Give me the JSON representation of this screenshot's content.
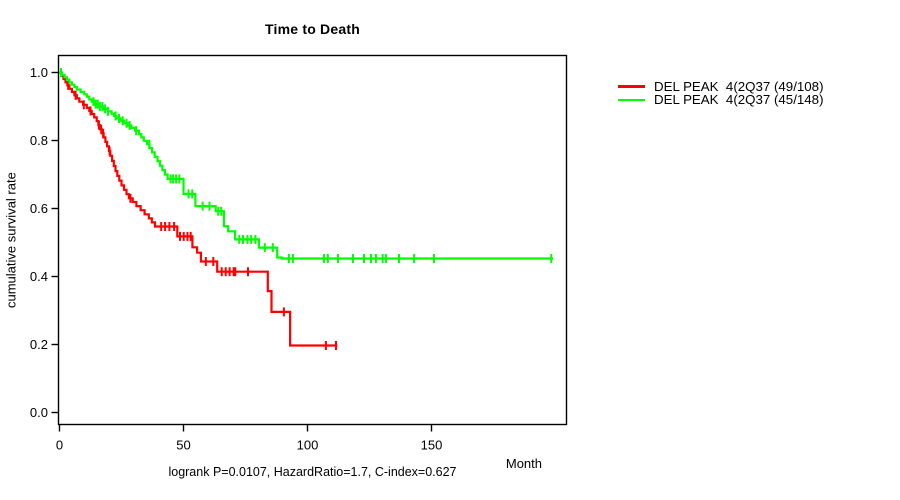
{
  "chart_data": {
    "type": "line",
    "subtype": "kaplan-meier-step-curves",
    "title": "Time to Death",
    "xlabel": "Month",
    "ylabel": "cumulative survival rate",
    "annotation": "logrank P=0.0107, HazardRatio=1.7, C-index=0.627",
    "xlim": [
      0,
      204
    ],
    "ylim": [
      0.0,
      1.0
    ],
    "xticks": [
      0,
      50,
      100,
      150
    ],
    "yticks": [
      0.0,
      0.2,
      0.4,
      0.6,
      0.8,
      1.0
    ],
    "grid": false,
    "legend_position": "right-outside-top",
    "censor_mark": "vertical-tick",
    "series": [
      {
        "name": "DEL PEAK  4(2Q37 (49/108)",
        "color": "#ff0000",
        "steps": [
          [
            0,
            1.0
          ],
          [
            0.8,
            0.99
          ],
          [
            1.6,
            0.981
          ],
          [
            2.4,
            0.971
          ],
          [
            3.2,
            0.962
          ],
          [
            4,
            0.952
          ],
          [
            5,
            0.943
          ],
          [
            6,
            0.933
          ],
          [
            7,
            0.924
          ],
          [
            8,
            0.914
          ],
          [
            9.5,
            0.905
          ],
          [
            11,
            0.896
          ],
          [
            12,
            0.887
          ],
          [
            13,
            0.878
          ],
          [
            14,
            0.868
          ],
          [
            15,
            0.857
          ],
          [
            15.7,
            0.845
          ],
          [
            16.4,
            0.833
          ],
          [
            17.1,
            0.821
          ],
          [
            17.8,
            0.809
          ],
          [
            18.5,
            0.796
          ],
          [
            19.2,
            0.783
          ],
          [
            19.9,
            0.769
          ],
          [
            20.5,
            0.755
          ],
          [
            21.2,
            0.74
          ],
          [
            21.9,
            0.725
          ],
          [
            22.6,
            0.71
          ],
          [
            23.3,
            0.696
          ],
          [
            24.1,
            0.682
          ],
          [
            25,
            0.668
          ],
          [
            26,
            0.655
          ],
          [
            27,
            0.642
          ],
          [
            28,
            0.63
          ],
          [
            29.5,
            0.619
          ],
          [
            31,
            0.607
          ],
          [
            32.7,
            0.595
          ],
          [
            34.3,
            0.583
          ],
          [
            36,
            0.571
          ],
          [
            37.2,
            0.559
          ],
          [
            38.5,
            0.547
          ],
          [
            47.5,
            0.518
          ],
          [
            53.6,
            0.486
          ],
          [
            55.5,
            0.47
          ],
          [
            57,
            0.444
          ],
          [
            63.6,
            0.414
          ],
          [
            84,
            0.357
          ],
          [
            85.5,
            0.296
          ],
          [
            93,
            0.197
          ]
        ],
        "end_month": 112,
        "censor_months": [
          3.5,
          6.5,
          9.8,
          12.5,
          15.9,
          16.8,
          17.6,
          20.2,
          28.6,
          41,
          42.6,
          44.3,
          46.2,
          48.6,
          50.1,
          51.6,
          52.9,
          59,
          62,
          65.4,
          67,
          68.6,
          70.2,
          70.9,
          76,
          90.5,
          107.4,
          111.5
        ]
      },
      {
        "name": "DEL PEAK  4(2Q37 (45/148)",
        "color": "#00ff00",
        "steps": [
          [
            0,
            1.0
          ],
          [
            1,
            0.993
          ],
          [
            2,
            0.986
          ],
          [
            3,
            0.979
          ],
          [
            4,
            0.971
          ],
          [
            5,
            0.964
          ],
          [
            6,
            0.957
          ],
          [
            7,
            0.95
          ],
          [
            8.5,
            0.943
          ],
          [
            10,
            0.936
          ],
          [
            11,
            0.929
          ],
          [
            12,
            0.921
          ],
          [
            13,
            0.914
          ],
          [
            14,
            0.907
          ],
          [
            15.5,
            0.9
          ],
          [
            17.5,
            0.893
          ],
          [
            19.5,
            0.886
          ],
          [
            21,
            0.879
          ],
          [
            22,
            0.872
          ],
          [
            23,
            0.865
          ],
          [
            24.5,
            0.858
          ],
          [
            26,
            0.851
          ],
          [
            27.5,
            0.844
          ],
          [
            29,
            0.837
          ],
          [
            30.5,
            0.829
          ],
          [
            32,
            0.819
          ],
          [
            33,
            0.809
          ],
          [
            34,
            0.799
          ],
          [
            35.3,
            0.789
          ],
          [
            36.3,
            0.778
          ],
          [
            37.3,
            0.765
          ],
          [
            38.4,
            0.752
          ],
          [
            39.5,
            0.739
          ],
          [
            40.5,
            0.726
          ],
          [
            41.5,
            0.713
          ],
          [
            42.5,
            0.7
          ],
          [
            43.6,
            0.687
          ],
          [
            50,
            0.643
          ],
          [
            54.8,
            0.607
          ],
          [
            63,
            0.592
          ],
          [
            66.3,
            0.548
          ],
          [
            68,
            0.533
          ],
          [
            70.8,
            0.509
          ],
          [
            80.4,
            0.485
          ],
          [
            87.8,
            0.456
          ],
          [
            89.6,
            0.453
          ]
        ],
        "end_month": 199,
        "censor_months": [
          0.6,
          13.7,
          14.6,
          15.4,
          16.3,
          17.3,
          18.4,
          19.5,
          22.6,
          24,
          25.5,
          27,
          28.3,
          30.9,
          36.2,
          44.8,
          45.8,
          47,
          48.3,
          52,
          53.5,
          57.7,
          60.5,
          64,
          65.2,
          72.5,
          74,
          75.8,
          77.3,
          79,
          82.8,
          86,
          92.5,
          94.1,
          106.6,
          108.2,
          112.3,
          118.3,
          122.8,
          125.6,
          127.6,
          130.3,
          131.6,
          136.9,
          143,
          151,
          198.3
        ]
      }
    ]
  }
}
